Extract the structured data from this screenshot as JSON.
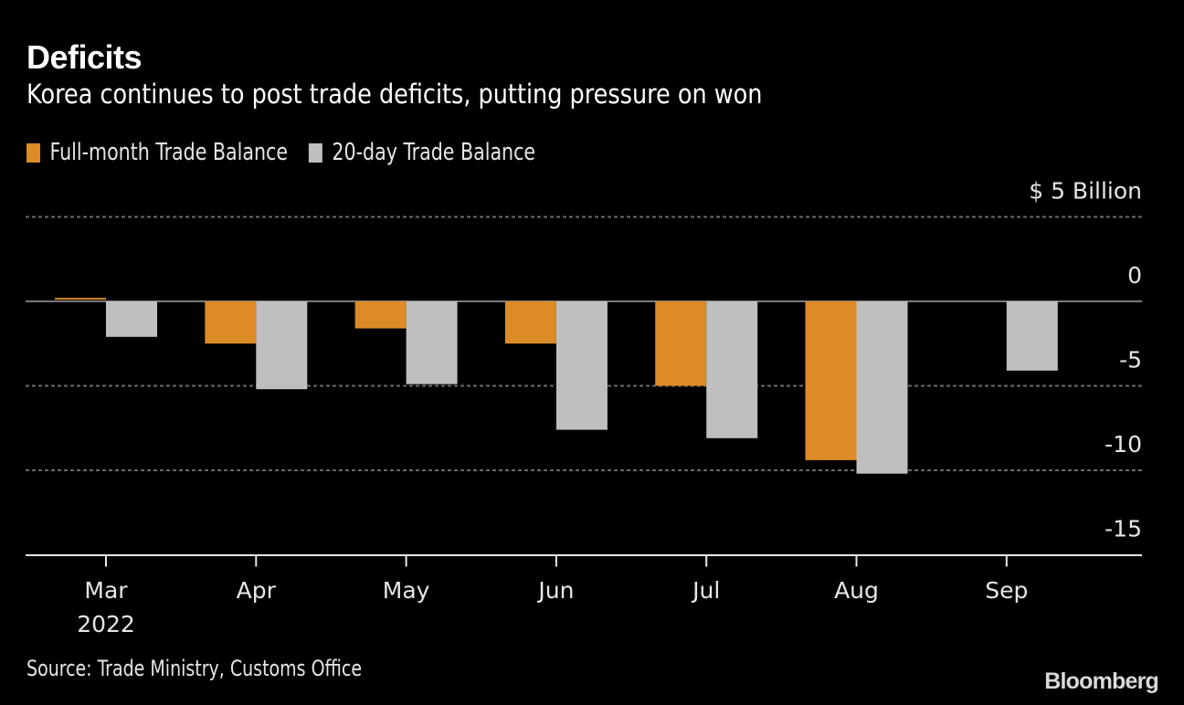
{
  "chart_data": {
    "type": "bar",
    "title": "Deficits",
    "subtitle": "Korea continues to post trade deficits, putting pressure on won",
    "xlabel": "",
    "ylabel": "$5 Billion",
    "unit_label": "$ 5 Billion",
    "categories": [
      "Mar",
      "Apr",
      "May",
      "Jun",
      "Jul",
      "Aug",
      "Sep"
    ],
    "category_sublabels": [
      "2022",
      "",
      "",
      "",
      "",
      "",
      ""
    ],
    "series": [
      {
        "name": "Full-month Trade Balance",
        "color": "#dc8b26",
        "values": [
          0.1,
          -2.5,
          -1.6,
          -2.5,
          -5.0,
          -9.4,
          null
        ]
      },
      {
        "name": "20-day Trade Balance",
        "color": "#bfbfbf",
        "values": [
          -2.1,
          -5.2,
          -4.9,
          -7.6,
          -8.1,
          -10.2,
          -4.1
        ]
      }
    ],
    "ylim": [
      -15,
      5
    ],
    "yticks": [
      5,
      0,
      -5,
      -10,
      -15
    ],
    "ytick_labels": [
      "$ 5 Billion",
      "0",
      "-5",
      "-10",
      "-15"
    ],
    "grid": true,
    "legend_position": "top-left",
    "source": "Source: Trade Ministry, Customs Office",
    "branding": "Bloomberg"
  }
}
